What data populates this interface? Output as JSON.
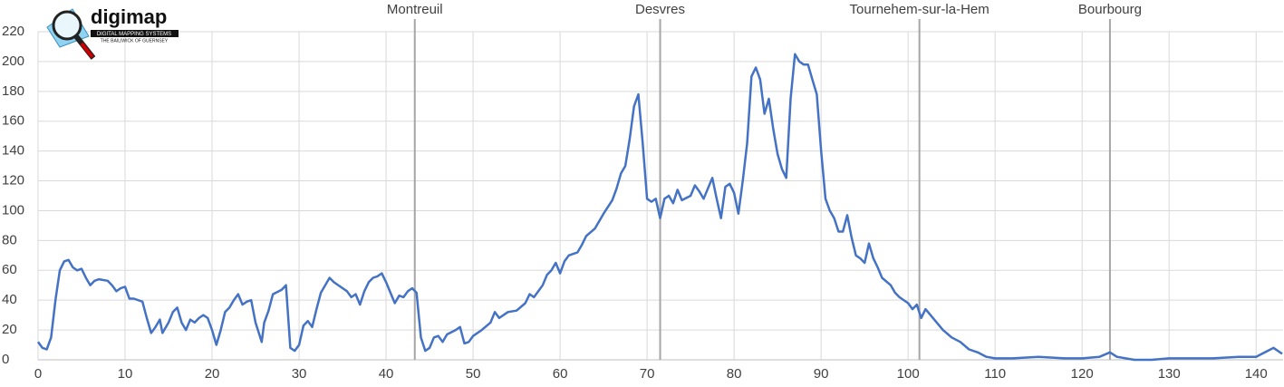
{
  "logo": {
    "name": "digimap",
    "tagline": "DIGITAL MAPPING SYSTEMS",
    "subtitle": "THE BAILIWICK OF GUERNSEY"
  },
  "chart_data": {
    "type": "line",
    "x": [
      0,
      0.5,
      1,
      1.5,
      2,
      2.5,
      3,
      3.5,
      4,
      4.5,
      5,
      5.5,
      6,
      6.5,
      7,
      8,
      8.5,
      9,
      9.5,
      10,
      10.5,
      11,
      12,
      12.5,
      13,
      13.5,
      14,
      14.3,
      15,
      15.5,
      16,
      16.5,
      17,
      17.5,
      18,
      18.5,
      19,
      19.5,
      20,
      20.5,
      21,
      21.5,
      22,
      22.5,
      23,
      23.5,
      24,
      24.5,
      25,
      25.7,
      26,
      26.5,
      27,
      28,
      28.5,
      29,
      29.5,
      30,
      30.5,
      31,
      31.5,
      32,
      32.5,
      33,
      33.5,
      34,
      35,
      35.5,
      36,
      36.5,
      37,
      37.5,
      38,
      38.5,
      39,
      39.5,
      40,
      40.5,
      41,
      41.5,
      42,
      42.5,
      43,
      43.5,
      44,
      44.5,
      45,
      45.5,
      46,
      46.5,
      47,
      48,
      48.5,
      49,
      49.5,
      50,
      51,
      52,
      52.5,
      53,
      54,
      55,
      56,
      56.5,
      57,
      58,
      58.5,
      59,
      59.5,
      60,
      60.5,
      61,
      62,
      62.5,
      63,
      64,
      65,
      66,
      66.5,
      67,
      67.5,
      68,
      68.5,
      69,
      69.5,
      70,
      70.5,
      71,
      71.5,
      72,
      72.5,
      73,
      73.5,
      74,
      75,
      75.5,
      76,
      76.5,
      77,
      77.5,
      78,
      78.5,
      79,
      79.5,
      80,
      80.5,
      81,
      81.5,
      82,
      82.5,
      83,
      83.5,
      84,
      84.5,
      85,
      85.5,
      86,
      86.5,
      87,
      87.5,
      88,
      88.5,
      89,
      89.5,
      90,
      90.5,
      91,
      91.5,
      92,
      92.5,
      93,
      93.5,
      94,
      94.5,
      95,
      95.5,
      96,
      96.5,
      97,
      98,
      98.5,
      99,
      100,
      100.5,
      101,
      101.5,
      102,
      103,
      104,
      105,
      106,
      107,
      108,
      109,
      110,
      112,
      115,
      118,
      120,
      122,
      123.2,
      124,
      126,
      128,
      130,
      133,
      135,
      138,
      140,
      141,
      142,
      143
    ],
    "values": [
      12,
      8,
      7,
      15,
      40,
      60,
      66,
      67,
      62,
      60,
      61,
      55,
      50,
      53,
      54,
      53,
      50,
      46,
      48,
      49,
      41,
      41,
      39,
      28,
      18,
      22,
      27,
      18,
      25,
      32,
      35,
      25,
      20,
      27,
      25,
      28,
      30,
      28,
      20,
      10,
      20,
      32,
      35,
      40,
      44,
      37,
      39,
      40,
      25,
      12,
      25,
      33,
      44,
      47,
      50,
      8,
      6,
      10,
      23,
      26,
      22,
      34,
      45,
      50,
      55,
      52,
      48,
      46,
      42,
      44,
      37,
      46,
      52,
      55,
      56,
      58,
      52,
      45,
      38,
      43,
      42,
      46,
      48,
      45,
      15,
      6,
      8,
      15,
      16,
      12,
      17,
      20,
      22,
      11,
      12,
      16,
      20,
      25,
      32,
      28,
      32,
      33,
      38,
      44,
      42,
      50,
      57,
      60,
      65,
      58,
      66,
      70,
      72,
      77,
      83,
      88,
      98,
      107,
      115,
      125,
      130,
      148,
      170,
      178,
      145,
      108,
      106,
      108,
      95,
      108,
      110,
      105,
      114,
      107,
      110,
      117,
      113,
      108,
      115,
      122,
      108,
      95,
      116,
      118,
      112,
      98,
      120,
      145,
      190,
      196,
      188,
      165,
      175,
      155,
      138,
      128,
      122,
      175,
      205,
      200,
      198,
      198,
      188,
      178,
      140,
      108,
      100,
      95,
      86,
      86,
      97,
      82,
      70,
      68,
      65,
      78,
      68,
      62,
      55,
      50,
      45,
      42,
      38,
      34,
      37,
      28,
      34,
      27,
      20,
      15,
      12,
      7,
      5,
      2,
      1,
      1,
      2,
      1,
      1,
      2,
      5,
      2,
      0,
      0,
      1,
      1,
      1,
      2,
      2,
      5,
      8,
      4
    ],
    "color": "#4472c4",
    "xlim": [
      0,
      143.1
    ],
    "ylim": [
      0,
      220
    ],
    "xticks": [
      0,
      10,
      20,
      30,
      40,
      50,
      60,
      70,
      80,
      90,
      100,
      110,
      120,
      130,
      140
    ],
    "yticks": [
      0,
      20,
      40,
      60,
      80,
      100,
      120,
      140,
      160,
      180,
      200,
      220
    ],
    "grid": true,
    "annotations": [
      {
        "label": "Montreuil",
        "x": 43.3
      },
      {
        "label": "Desvres",
        "x": 71.5
      },
      {
        "label": "Tournehem-sur-la-Hem",
        "x": 101.3
      },
      {
        "label": "Bourbourg",
        "x": 123.2
      }
    ]
  }
}
